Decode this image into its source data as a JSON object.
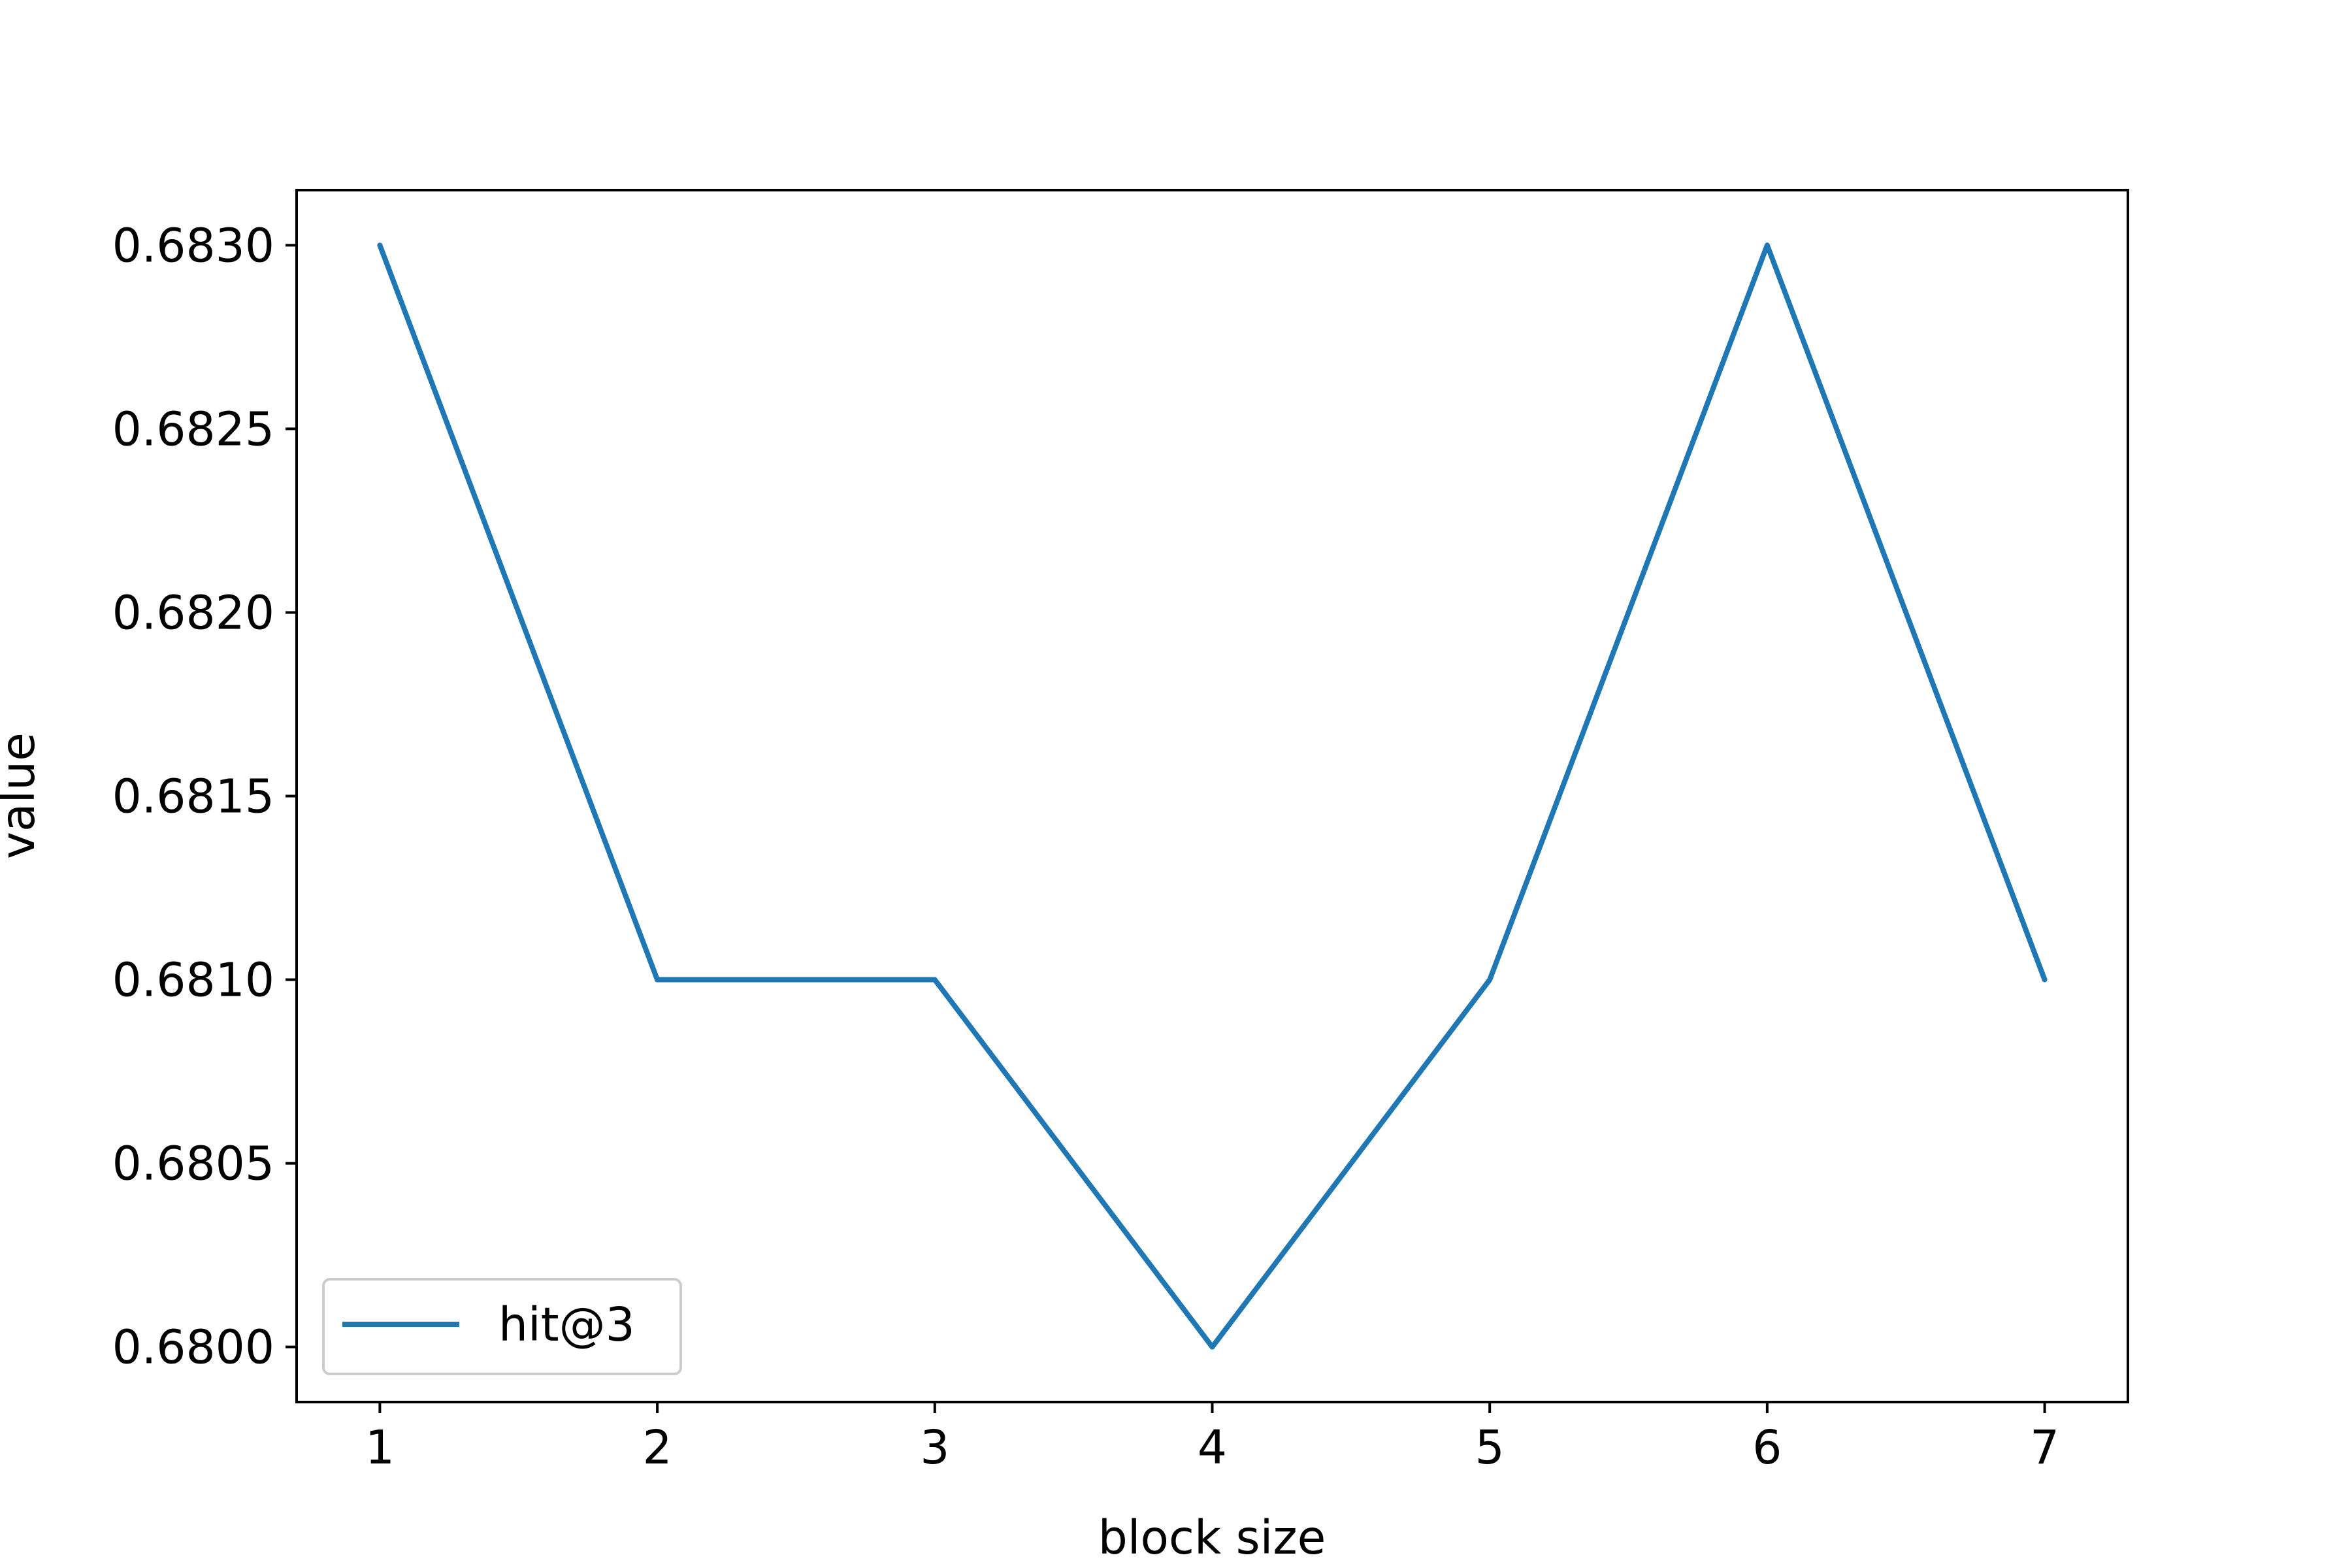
{
  "chart_data": {
    "type": "line",
    "title": "",
    "xlabel": "block size",
    "ylabel": "value",
    "x": [
      1,
      2,
      3,
      4,
      5,
      6,
      7
    ],
    "xticks": [
      "1",
      "2",
      "3",
      "4",
      "5",
      "6",
      "7"
    ],
    "yticks": [
      "0.6800",
      "0.6805",
      "0.6810",
      "0.6815",
      "0.6820",
      "0.6825",
      "0.6830"
    ],
    "xlim": [
      0.7,
      7.3
    ],
    "ylim": [
      0.67985,
      0.68315
    ],
    "grid": false,
    "legend_position": "lower-left",
    "series": [
      {
        "name": "hit@3",
        "color": "#1f77b4",
        "values": [
          0.683,
          0.681,
          0.681,
          0.68,
          0.681,
          0.683,
          0.681
        ]
      }
    ]
  }
}
